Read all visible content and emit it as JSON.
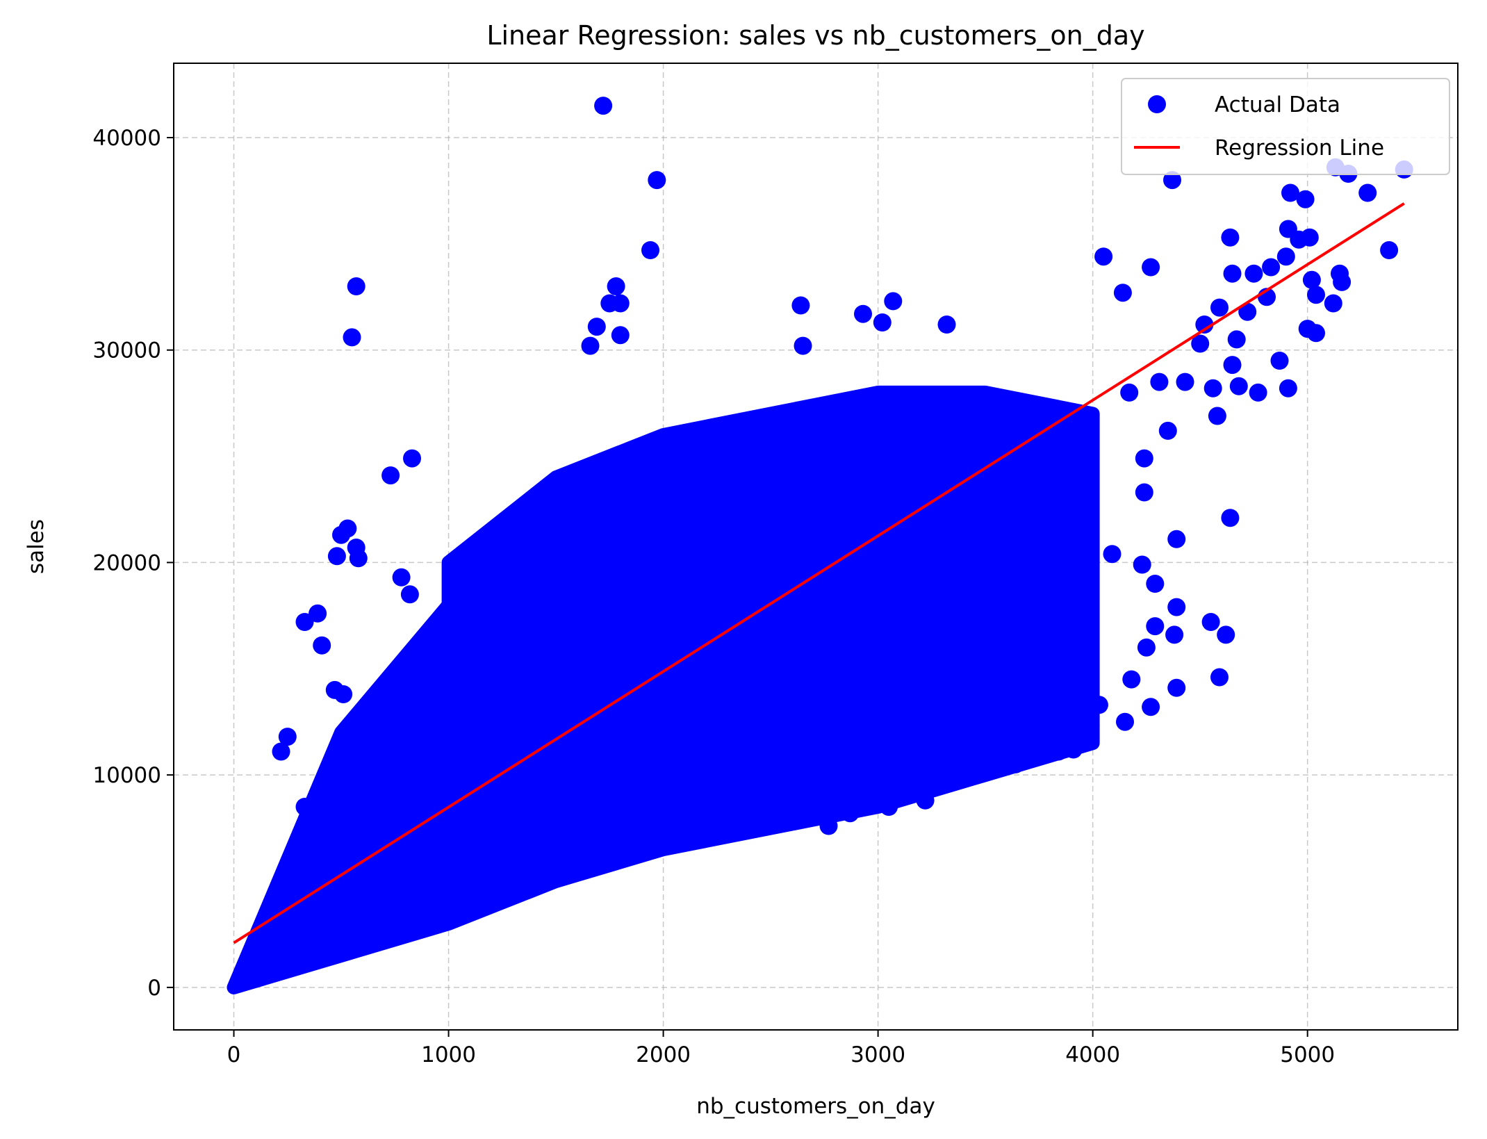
{
  "chart_data": {
    "type": "scatter",
    "title": "Linear Regression: sales vs nb_customers_on_day",
    "xlabel": "nb_customers_on_day",
    "ylabel": "sales",
    "xlim": [
      -280,
      5700
    ],
    "ylim": [
      -2000,
      43500
    ],
    "xticks": [
      0,
      1000,
      2000,
      3000,
      4000,
      5000
    ],
    "yticks": [
      0,
      10000,
      20000,
      30000,
      40000
    ],
    "xtick_labels": [
      "0",
      "1000",
      "2000",
      "3000",
      "4000",
      "5000"
    ],
    "ytick_labels": [
      "0",
      "10000",
      "20000",
      "30000",
      "40000"
    ],
    "grid": true,
    "legend_position": "top-right",
    "series": [
      {
        "name": "Actual Data",
        "kind": "scatter",
        "color": "#0000ff",
        "density_envelope": [
          [
            0,
            0
          ],
          [
            500,
            12000
          ],
          [
            1000,
            18000
          ],
          [
            1000,
            20000
          ],
          [
            1500,
            24000
          ],
          [
            2000,
            26000
          ],
          [
            2500,
            27000
          ],
          [
            3000,
            28000
          ],
          [
            3500,
            28000
          ],
          [
            4000,
            27000
          ],
          [
            4000,
            11500
          ],
          [
            3500,
            10000
          ],
          [
            3000,
            8500
          ],
          [
            2500,
            7500
          ],
          [
            2000,
            6500
          ],
          [
            1500,
            5000
          ],
          [
            1000,
            3000
          ],
          [
            500,
            1500
          ],
          [
            0,
            0
          ]
        ],
        "points": [
          [
            1720,
            41500
          ],
          [
            1970,
            38000
          ],
          [
            1940,
            34700
          ],
          [
            570,
            33000
          ],
          [
            550,
            30600
          ],
          [
            1780,
            33000
          ],
          [
            1750,
            32200
          ],
          [
            1800,
            32200
          ],
          [
            1690,
            31100
          ],
          [
            1800,
            30700
          ],
          [
            1660,
            30200
          ],
          [
            730,
            24100
          ],
          [
            830,
            24900
          ],
          [
            530,
            21600
          ],
          [
            500,
            21300
          ],
          [
            480,
            20300
          ],
          [
            570,
            20700
          ],
          [
            580,
            20200
          ],
          [
            780,
            19300
          ],
          [
            820,
            18500
          ],
          [
            330,
            17200
          ],
          [
            390,
            17600
          ],
          [
            410,
            16100
          ],
          [
            470,
            14000
          ],
          [
            510,
            13800
          ],
          [
            250,
            11800
          ],
          [
            220,
            11100
          ],
          [
            330,
            8500
          ],
          [
            2640,
            32100
          ],
          [
            2650,
            30200
          ],
          [
            2930,
            31700
          ],
          [
            3020,
            31300
          ],
          [
            3070,
            32300
          ],
          [
            3320,
            31200
          ],
          [
            3050,
            8500
          ],
          [
            3220,
            8800
          ],
          [
            2770,
            7600
          ],
          [
            2870,
            8200
          ],
          [
            3520,
            10700
          ],
          [
            3640,
            10500
          ],
          [
            3910,
            11200
          ],
          [
            3840,
            11100
          ],
          [
            3990,
            12300
          ],
          [
            3910,
            12900
          ],
          [
            4050,
            34400
          ],
          [
            4140,
            32700
          ],
          [
            4270,
            33900
          ],
          [
            4370,
            38000
          ],
          [
            4640,
            35300
          ],
          [
            4650,
            33600
          ],
          [
            4170,
            28000
          ],
          [
            4310,
            28500
          ],
          [
            4350,
            26200
          ],
          [
            4240,
            24900
          ],
          [
            4240,
            23300
          ],
          [
            4640,
            22100
          ],
          [
            4390,
            21100
          ],
          [
            4090,
            20400
          ],
          [
            4230,
            19900
          ],
          [
            4290,
            19000
          ],
          [
            4390,
            17900
          ],
          [
            4290,
            17000
          ],
          [
            4550,
            17200
          ],
          [
            4620,
            16600
          ],
          [
            4380,
            16600
          ],
          [
            4250,
            16000
          ],
          [
            4180,
            14500
          ],
          [
            4590,
            14600
          ],
          [
            4390,
            14100
          ],
          [
            4270,
            13200
          ],
          [
            4150,
            12500
          ],
          [
            4030,
            13300
          ],
          [
            4520,
            31200
          ],
          [
            4590,
            32000
          ],
          [
            4720,
            31800
          ],
          [
            4810,
            32500
          ],
          [
            4750,
            33600
          ],
          [
            4830,
            33900
          ],
          [
            4900,
            34400
          ],
          [
            4910,
            35700
          ],
          [
            4960,
            35200
          ],
          [
            4920,
            37400
          ],
          [
            4990,
            37100
          ],
          [
            5010,
            35300
          ],
          [
            5020,
            33300
          ],
          [
            5040,
            32600
          ],
          [
            5000,
            31000
          ],
          [
            5040,
            30800
          ],
          [
            5120,
            32200
          ],
          [
            5160,
            33200
          ],
          [
            5150,
            33600
          ],
          [
            5130,
            38600
          ],
          [
            5190,
            38300
          ],
          [
            5280,
            37400
          ],
          [
            5380,
            34700
          ],
          [
            5450,
            38500
          ],
          [
            4870,
            29500
          ],
          [
            4910,
            28200
          ],
          [
            4770,
            28000
          ],
          [
            4680,
            28300
          ],
          [
            4650,
            29300
          ],
          [
            4670,
            30500
          ],
          [
            4580,
            26900
          ],
          [
            4500,
            30300
          ],
          [
            4430,
            28500
          ],
          [
            4560,
            28200
          ]
        ]
      },
      {
        "name": "Regression Line",
        "kind": "line",
        "color": "#ff0000",
        "x": [
          0,
          5450
        ],
        "y": [
          2100,
          36900
        ]
      }
    ]
  }
}
